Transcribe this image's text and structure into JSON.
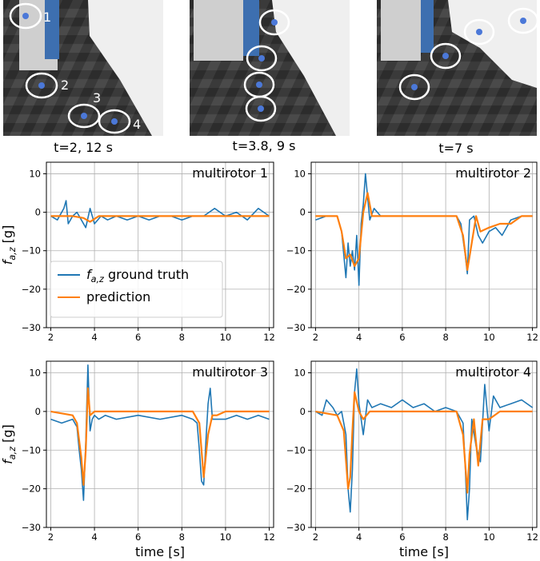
{
  "photos": [
    {
      "caption": "t=2, 12 s",
      "labels": [
        "1",
        "2",
        "3",
        "4"
      ]
    },
    {
      "caption": "t=3.8, 9 s",
      "labels": []
    },
    {
      "caption": "t=7 s",
      "labels": []
    }
  ],
  "colors": {
    "ground_truth": "#1f77b4",
    "prediction": "#ff7f0e"
  },
  "chart_data": [
    {
      "type": "line",
      "title": "multirotor 1",
      "xlabel": "",
      "ylabel": "f_{a,z} [g]",
      "xlim": [
        1.8,
        12.2
      ],
      "ylim": [
        -30,
        13
      ],
      "xticks": [
        2,
        4,
        6,
        8,
        10,
        12
      ],
      "yticks": [
        -30,
        -20,
        -10,
        0,
        10
      ],
      "grid": true,
      "legend": {
        "placement": "lower-left",
        "entries": [
          "f_{a,z} ground truth",
          "prediction"
        ]
      },
      "series": [
        {
          "name": "f_{a,z} ground truth",
          "color": "#1f77b4",
          "x": [
            2.0,
            2.3,
            2.6,
            2.7,
            2.8,
            3.0,
            3.2,
            3.4,
            3.6,
            3.8,
            4.0,
            4.3,
            4.6,
            5.0,
            5.5,
            6.0,
            6.5,
            7.0,
            7.5,
            8.0,
            8.5,
            9.0,
            9.5,
            10.0,
            10.5,
            11.0,
            11.5,
            12.0
          ],
          "y": [
            -1,
            -2,
            1,
            3,
            -3,
            -1,
            0,
            -2,
            -4,
            1,
            -3,
            -1,
            -2,
            -1,
            -2,
            -1,
            -2,
            -1,
            -1,
            -2,
            -1,
            -1,
            1,
            -1,
            0,
            -2,
            1,
            -1
          ]
        },
        {
          "name": "prediction",
          "color": "#ff7f0e",
          "x": [
            2.0,
            3.0,
            3.5,
            3.8,
            4.2,
            5.0,
            6.0,
            7.0,
            8.0,
            9.0,
            10.0,
            11.0,
            12.0
          ],
          "y": [
            -1,
            -1,
            -1.5,
            -2.5,
            -1,
            -1,
            -1,
            -1,
            -1,
            -1,
            -1,
            -1,
            -1
          ]
        }
      ]
    },
    {
      "type": "line",
      "title": "multirotor 2",
      "xlabel": "",
      "ylabel": "",
      "xlim": [
        1.8,
        12.2
      ],
      "ylim": [
        -30,
        13
      ],
      "xticks": [
        2,
        4,
        6,
        8,
        10,
        12
      ],
      "yticks": [
        -30,
        -20,
        -10,
        0,
        10
      ],
      "grid": true,
      "series": [
        {
          "name": "f_{a,z} ground truth",
          "color": "#1f77b4",
          "x": [
            2.0,
            2.5,
            3.0,
            3.2,
            3.4,
            3.5,
            3.6,
            3.7,
            3.8,
            3.9,
            4.0,
            4.1,
            4.2,
            4.3,
            4.4,
            4.5,
            4.7,
            5.0,
            6.0,
            7.0,
            8.0,
            8.5,
            8.7,
            8.9,
            9.0,
            9.1,
            9.3,
            9.5,
            9.7,
            10.0,
            10.3,
            10.6,
            11.0,
            11.5,
            12.0
          ],
          "y": [
            -2,
            -1,
            -1,
            -5,
            -17,
            -8,
            -14,
            -10,
            -15,
            -6,
            -19,
            -3,
            2,
            10,
            4,
            -2,
            1,
            -1,
            -1,
            -1,
            -1,
            -1,
            -3,
            -11,
            -16,
            -2,
            -1,
            -6,
            -8,
            -5,
            -4,
            -6,
            -2,
            -1,
            -1
          ]
        },
        {
          "name": "prediction",
          "color": "#ff7f0e",
          "x": [
            2.0,
            3.0,
            3.2,
            3.4,
            3.6,
            3.8,
            4.0,
            4.2,
            4.4,
            4.6,
            5.0,
            6.0,
            7.0,
            8.0,
            8.5,
            8.8,
            9.0,
            9.2,
            9.4,
            9.6,
            10.0,
            10.5,
            11.0,
            11.5,
            12.0
          ],
          "y": [
            -1,
            -1,
            -5,
            -12,
            -11,
            -14,
            -12,
            0,
            5,
            -1,
            -1,
            -1,
            -1,
            -1,
            -1,
            -6,
            -15,
            -8,
            -1,
            -5,
            -4,
            -3,
            -3,
            -1,
            -1
          ]
        }
      ]
    },
    {
      "type": "line",
      "title": "multirotor 3",
      "xlabel": "time [s]",
      "ylabel": "f_{a,z} [g]",
      "xlim": [
        1.8,
        12.2
      ],
      "ylim": [
        -30,
        13
      ],
      "xticks": [
        2,
        4,
        6,
        8,
        10,
        12
      ],
      "yticks": [
        -30,
        -20,
        -10,
        0,
        10
      ],
      "grid": true,
      "series": [
        {
          "name": "f_{a,z} ground truth",
          "color": "#1f77b4",
          "x": [
            2.0,
            2.5,
            3.0,
            3.2,
            3.3,
            3.4,
            3.5,
            3.6,
            3.7,
            3.8,
            3.9,
            4.0,
            4.2,
            4.5,
            5.0,
            6.0,
            7.0,
            8.0,
            8.5,
            8.7,
            8.8,
            8.9,
            9.0,
            9.1,
            9.2,
            9.3,
            9.4,
            9.6,
            10.0,
            10.5,
            11.0,
            11.5,
            12.0
          ],
          "y": [
            -2,
            -3,
            -2,
            -4,
            -10,
            -15,
            -23,
            -8,
            12,
            -5,
            -2,
            -1,
            -2,
            -1,
            -2,
            -1,
            -2,
            -1,
            -2,
            -3,
            -10,
            -18,
            -19,
            -8,
            2,
            6,
            -2,
            -2,
            -2,
            -1,
            -2,
            -1,
            -2
          ]
        },
        {
          "name": "prediction",
          "color": "#ff7f0e",
          "x": [
            2.0,
            3.0,
            3.2,
            3.4,
            3.5,
            3.6,
            3.7,
            3.8,
            4.0,
            4.3,
            5.0,
            6.0,
            7.0,
            8.0,
            8.5,
            8.8,
            9.0,
            9.2,
            9.4,
            9.6,
            10.0,
            11.0,
            12.0
          ],
          "y": [
            0,
            -1,
            -3,
            -12,
            -19,
            -10,
            6,
            -1,
            0,
            0,
            0,
            0,
            0,
            0,
            0,
            -3,
            -17,
            -6,
            -1,
            -1,
            0,
            0,
            0
          ]
        }
      ]
    },
    {
      "type": "line",
      "title": "multirotor 4",
      "xlabel": "time [s]",
      "ylabel": "",
      "xlim": [
        1.8,
        12.2
      ],
      "ylim": [
        -30,
        13
      ],
      "xticks": [
        2,
        4,
        6,
        8,
        10,
        12
      ],
      "yticks": [
        -30,
        -20,
        -10,
        0,
        10
      ],
      "grid": true,
      "series": [
        {
          "name": "f_{a,z} ground truth",
          "color": "#1f77b4",
          "x": [
            2.0,
            2.3,
            2.5,
            2.8,
            3.0,
            3.2,
            3.4,
            3.5,
            3.6,
            3.7,
            3.8,
            3.9,
            4.0,
            4.2,
            4.4,
            4.6,
            5.0,
            5.5,
            6.0,
            6.5,
            7.0,
            7.5,
            8.0,
            8.5,
            8.8,
            8.9,
            9.0,
            9.1,
            9.2,
            9.4,
            9.6,
            9.8,
            10.0,
            10.2,
            10.5,
            11.0,
            11.5,
            12.0
          ],
          "y": [
            0,
            -1,
            3,
            1,
            -1,
            0,
            -6,
            -20,
            -26,
            -15,
            5,
            11,
            2,
            -6,
            3,
            1,
            2,
            1,
            3,
            1,
            2,
            0,
            1,
            0,
            -3,
            -14,
            -28,
            -20,
            -2,
            -9,
            -13,
            7,
            -5,
            4,
            1,
            2,
            3,
            1
          ]
        },
        {
          "name": "prediction",
          "color": "#ff7f0e",
          "x": [
            2.0,
            3.0,
            3.3,
            3.5,
            3.6,
            3.7,
            3.8,
            4.0,
            4.2,
            4.5,
            5.0,
            6.0,
            7.0,
            8.0,
            8.5,
            8.8,
            9.0,
            9.1,
            9.3,
            9.5,
            9.7,
            10.0,
            10.5,
            11.0,
            12.0
          ],
          "y": [
            0,
            -1,
            -5,
            -20,
            -17,
            -5,
            5,
            0,
            -2,
            0,
            0,
            0,
            0,
            0,
            0,
            -6,
            -21,
            -11,
            -2,
            -14,
            -2,
            -2,
            0,
            0,
            0
          ]
        }
      ]
    }
  ]
}
